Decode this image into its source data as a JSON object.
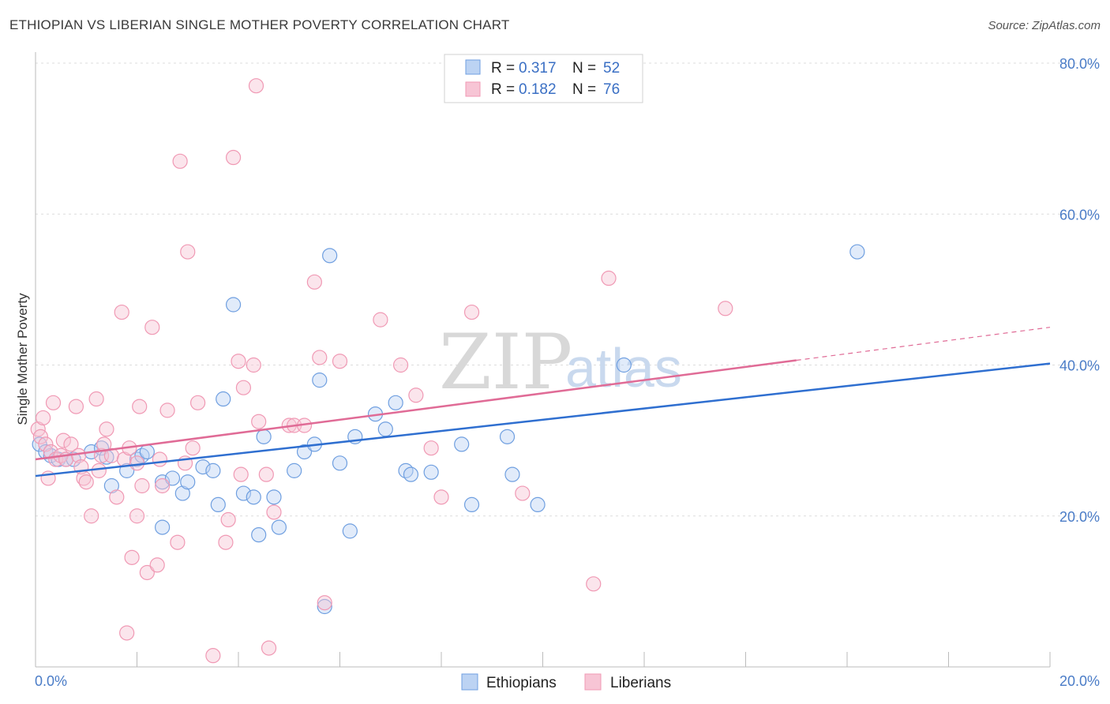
{
  "title": "ETHIOPIAN VS LIBERIAN SINGLE MOTHER POVERTY CORRELATION CHART",
  "source": "Source: ZipAtlas.com",
  "watermark": {
    "zip": "ZIP",
    "atlas": "atlas"
  },
  "chart_data": {
    "type": "scatter",
    "title": "ETHIOPIAN VS LIBERIAN SINGLE MOTHER POVERTY CORRELATION CHART",
    "xlabel": "",
    "ylabel": "Single Mother Poverty",
    "xlim": [
      0,
      20
    ],
    "ylim": [
      0,
      80
    ],
    "x_tick_labels": [
      {
        "value": 0,
        "label": "0.0%"
      },
      {
        "value": 20,
        "label": "20.0%"
      }
    ],
    "y_tick_labels": [
      {
        "value": 20,
        "label": "20.0%"
      },
      {
        "value": 40,
        "label": "40.0%"
      },
      {
        "value": 60,
        "label": "60.0%"
      },
      {
        "value": 80,
        "label": "80.0%"
      }
    ],
    "legend_position": "top-center",
    "stats": [
      {
        "r_label": "R =",
        "r_value": "0.317",
        "n_label": "N =",
        "n_value": "52"
      },
      {
        "r_label": "R =",
        "r_value": "0.182",
        "n_label": "N =",
        "n_value": "76"
      }
    ],
    "series": [
      {
        "name": "Ethiopians",
        "color": "#6f9fe0",
        "fill": "#bcd3f3",
        "line_color": "#2f6fd0",
        "trend": {
          "x": [
            0,
            20
          ],
          "y": [
            25.3,
            40.2
          ],
          "dashed_from": null
        },
        "points": [
          [
            0.08,
            29.5
          ],
          [
            0.2,
            28.5
          ],
          [
            0.3,
            28.0
          ],
          [
            0.45,
            27.5
          ],
          [
            0.6,
            27.5
          ],
          [
            0.75,
            27.5
          ],
          [
            1.1,
            28.5
          ],
          [
            1.3,
            29.0
          ],
          [
            1.4,
            27.8
          ],
          [
            1.5,
            24.0
          ],
          [
            1.8,
            26.0
          ],
          [
            2.0,
            27.5
          ],
          [
            2.1,
            28.0
          ],
          [
            2.2,
            28.5
          ],
          [
            2.5,
            18.5
          ],
          [
            2.5,
            24.5
          ],
          [
            2.7,
            25.0
          ],
          [
            2.9,
            23.0
          ],
          [
            3.0,
            24.5
          ],
          [
            3.3,
            26.5
          ],
          [
            3.5,
            26.0
          ],
          [
            3.6,
            21.5
          ],
          [
            3.7,
            35.5
          ],
          [
            3.9,
            48.0
          ],
          [
            4.1,
            23.0
          ],
          [
            4.3,
            22.5
          ],
          [
            4.4,
            17.5
          ],
          [
            4.5,
            30.5
          ],
          [
            4.7,
            22.5
          ],
          [
            4.8,
            18.5
          ],
          [
            5.1,
            26.0
          ],
          [
            5.3,
            28.5
          ],
          [
            5.5,
            29.5
          ],
          [
            5.6,
            38.0
          ],
          [
            5.7,
            8.0
          ],
          [
            5.8,
            54.5
          ],
          [
            6.0,
            27.0
          ],
          [
            6.2,
            18.0
          ],
          [
            6.3,
            30.5
          ],
          [
            6.7,
            33.5
          ],
          [
            6.9,
            31.5
          ],
          [
            7.1,
            35.0
          ],
          [
            7.3,
            26.0
          ],
          [
            7.4,
            25.5
          ],
          [
            7.8,
            25.8
          ],
          [
            8.4,
            29.5
          ],
          [
            8.6,
            21.5
          ],
          [
            9.3,
            30.5
          ],
          [
            9.4,
            25.5
          ],
          [
            9.9,
            21.5
          ],
          [
            11.6,
            40.0
          ],
          [
            16.2,
            55.0
          ]
        ]
      },
      {
        "name": "Liberians",
        "color": "#f099b4",
        "fill": "#f7c5d5",
        "line_color": "#e06b96",
        "trend": {
          "x": [
            0,
            20
          ],
          "y": [
            27.5,
            45.0
          ],
          "dashed_from": 15
        },
        "points": [
          [
            0.05,
            31.5
          ],
          [
            0.1,
            30.5
          ],
          [
            0.2,
            29.5
          ],
          [
            0.3,
            28.5
          ],
          [
            0.35,
            35.0
          ],
          [
            0.4,
            27.5
          ],
          [
            0.5,
            28.0
          ],
          [
            0.55,
            30.0
          ],
          [
            0.6,
            27.5
          ],
          [
            0.7,
            29.5
          ],
          [
            0.8,
            34.5
          ],
          [
            0.85,
            28.0
          ],
          [
            0.9,
            26.5
          ],
          [
            0.95,
            25.0
          ],
          [
            1.0,
            24.5
          ],
          [
            1.1,
            20.0
          ],
          [
            1.2,
            35.5
          ],
          [
            1.25,
            26.0
          ],
          [
            1.3,
            28.0
          ],
          [
            1.35,
            29.5
          ],
          [
            1.4,
            31.5
          ],
          [
            1.5,
            28.0
          ],
          [
            1.6,
            22.5
          ],
          [
            1.7,
            47.0
          ],
          [
            1.75,
            27.5
          ],
          [
            1.8,
            4.5
          ],
          [
            1.85,
            29.0
          ],
          [
            1.9,
            14.5
          ],
          [
            2.0,
            20.0
          ],
          [
            2.0,
            27.0
          ],
          [
            2.05,
            34.5
          ],
          [
            2.1,
            24.0
          ],
          [
            2.2,
            12.5
          ],
          [
            2.3,
            45.0
          ],
          [
            2.4,
            13.5
          ],
          [
            2.45,
            27.5
          ],
          [
            2.5,
            24.0
          ],
          [
            2.6,
            34.0
          ],
          [
            2.8,
            16.5
          ],
          [
            2.85,
            67.0
          ],
          [
            2.95,
            27.0
          ],
          [
            3.0,
            55.0
          ],
          [
            3.1,
            29.0
          ],
          [
            3.2,
            35.0
          ],
          [
            3.5,
            1.5
          ],
          [
            3.75,
            16.5
          ],
          [
            3.8,
            19.5
          ],
          [
            3.9,
            67.5
          ],
          [
            4.0,
            40.5
          ],
          [
            4.05,
            25.5
          ],
          [
            4.1,
            37.0
          ],
          [
            4.3,
            40.0
          ],
          [
            4.35,
            77.0
          ],
          [
            4.4,
            32.5
          ],
          [
            4.55,
            25.5
          ],
          [
            4.6,
            2.5
          ],
          [
            4.7,
            20.5
          ],
          [
            5.0,
            32.0
          ],
          [
            5.1,
            32.0
          ],
          [
            5.3,
            32.0
          ],
          [
            5.5,
            51.0
          ],
          [
            5.6,
            41.0
          ],
          [
            5.7,
            8.5
          ],
          [
            6.0,
            40.5
          ],
          [
            6.8,
            46.0
          ],
          [
            7.2,
            40.0
          ],
          [
            7.5,
            36.0
          ],
          [
            7.8,
            29.0
          ],
          [
            8.0,
            22.5
          ],
          [
            8.6,
            47.0
          ],
          [
            9.6,
            23.0
          ],
          [
            11.0,
            11.0
          ],
          [
            11.3,
            51.5
          ],
          [
            13.6,
            47.5
          ],
          [
            0.15,
            33.0
          ],
          [
            0.25,
            25.0
          ]
        ]
      }
    ]
  }
}
